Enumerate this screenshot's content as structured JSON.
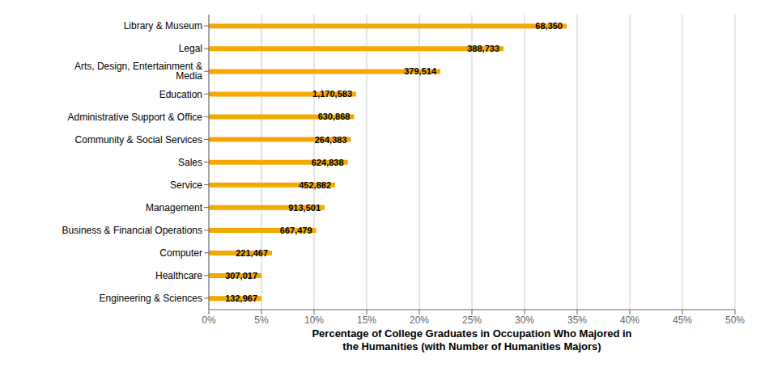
{
  "chart_data": {
    "type": "bar",
    "orientation": "horizontal",
    "categories": [
      "Library & Museum",
      "Legal",
      "Arts, Design, Entertainment & Media",
      "Education",
      "Administrative Support & Office",
      "Community & Social Services",
      "Sales",
      "Service",
      "Management",
      "Business & Financial Operations",
      "Computer",
      "Healthcare",
      "Engineering & Sciences"
    ],
    "values": [
      34.0,
      28.0,
      22.0,
      14.0,
      13.8,
      13.5,
      13.2,
      12.0,
      11.0,
      10.2,
      6.0,
      5.0,
      5.0
    ],
    "bar_labels": [
      "68,350",
      "388,733",
      "379,514",
      "1,170,583",
      "630,868",
      "264,383",
      "624,838",
      "452,882",
      "913,501",
      "667,479",
      "221,467",
      "307,017",
      "132,967"
    ],
    "color": "#F5A800",
    "xlabel": "Percentage of College Graduates in Occupation Who Majored in\nthe Humanities (with Number of Humanities Majors)",
    "xlim": [
      0,
      50
    ],
    "xticks": [
      {
        "value": 0,
        "label": "0%"
      },
      {
        "value": 5,
        "label": "5%"
      },
      {
        "value": 10,
        "label": "10%"
      },
      {
        "value": 15,
        "label": "15%"
      },
      {
        "value": 20,
        "label": "20%"
      },
      {
        "value": 25,
        "label": "25%"
      },
      {
        "value": 30,
        "label": "30%"
      },
      {
        "value": 35,
        "label": "35%"
      },
      {
        "value": 40,
        "label": "40%"
      },
      {
        "value": 45,
        "label": "45%"
      },
      {
        "value": 50,
        "label": "50%"
      }
    ],
    "grid": true
  }
}
